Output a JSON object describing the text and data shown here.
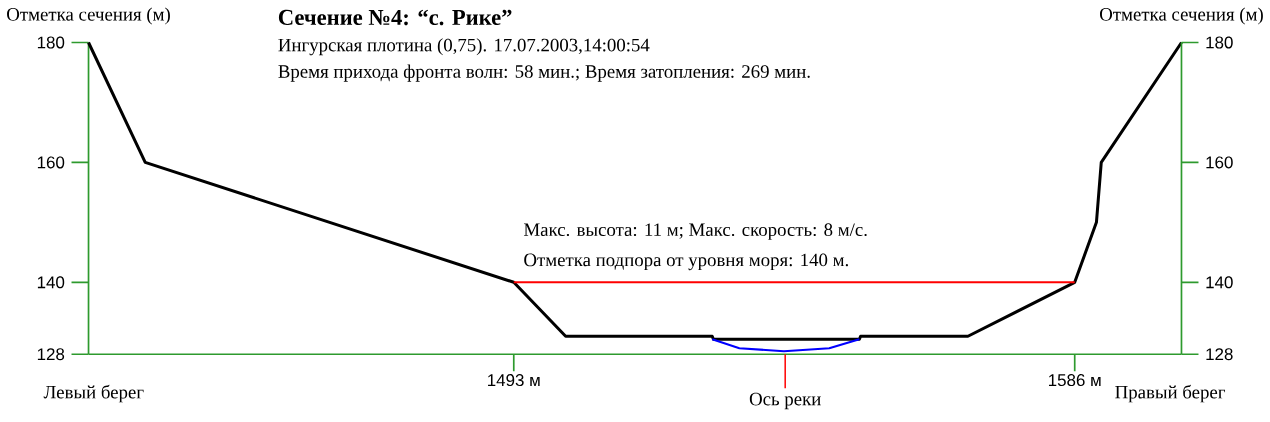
{
  "chart_data": {
    "type": "line",
    "title": "Сечение №4: “с. Рике”",
    "subtitle": "Ингурская плотина (0,75). 17.07.2003,14:00:54",
    "ylabel": "Отметка сечения (м)",
    "y2label": "Отметка сечения (м)",
    "annotations": [
      "Время прихода фронта волн: 58 мин.; Время затопления: 269 мин.",
      "Макс. высота: 11 м; Макс. скорость: 8 м/с.",
      "Отметка подпора от уровня моря: 140 м.",
      "Левый берег",
      "Правый берег"
    ],
    "series": [
      {
        "color": "#000000",
        "x": [
          1422.5,
          1431.9,
          1493,
          1501.6,
          1525.9,
          1526.1,
          1550.3,
          1550.5,
          1568.3,
          1586,
          1589.6,
          1590.4,
          1603.7
        ],
        "values": [
          180,
          160,
          140,
          131,
          131,
          130.5,
          130.5,
          131,
          131,
          140,
          150,
          160,
          180
        ]
      },
      {
        "color": "#ff0000",
        "x": [
          1493,
          1586
        ],
        "values": [
          140,
          140
        ]
      },
      {
        "color": "#0000ff",
        "x": [
          1525.9,
          1530.4,
          1537.8,
          1545.3,
          1550.3
        ],
        "values": [
          130.5,
          129,
          128.5,
          129,
          130.5
        ]
      }
    ],
    "xlim": [
      1422.5,
      1603.7
    ],
    "xticks": [
      {
        "value": 1493,
        "label": "1493 м"
      },
      {
        "value": 1586,
        "label": "1586 м"
      }
    ],
    "ylim": [
      128,
      180
    ],
    "yticks": [
      128,
      140,
      160,
      180
    ],
    "y2lim": [
      128,
      180
    ],
    "y2ticks": [
      128,
      140,
      160,
      180
    ],
    "ref_lines": [
      {
        "axis": "x",
        "value": 1538,
        "label": "Ось реки",
        "color": "#ff0000"
      }
    ]
  }
}
